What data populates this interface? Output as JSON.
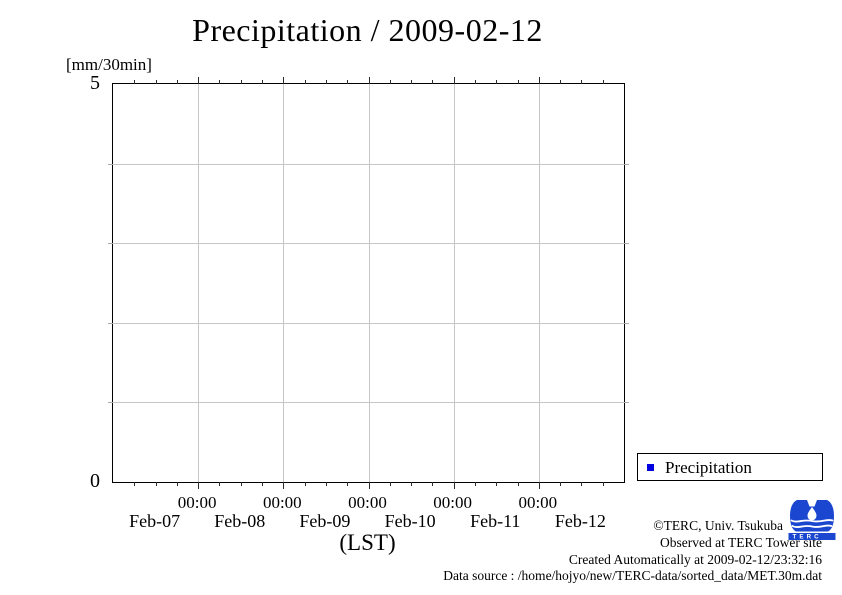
{
  "title": "Precipitation / 2009-02-12",
  "y_axis": {
    "unit_label": "[mm/30min]",
    "max_label": "5",
    "min_label": "0",
    "min": 0,
    "max": 5,
    "gridlines_at": [
      1,
      2,
      3,
      4
    ]
  },
  "x_axis": {
    "label": "(LST)",
    "major_tick_label": "00:00",
    "day_labels": [
      "Feb-07",
      "Feb-08",
      "Feb-09",
      "Feb-10",
      "Feb-11",
      "Feb-12"
    ],
    "minor_ticks_per_day": 4
  },
  "legend": {
    "items": [
      {
        "label": "Precipitation",
        "marker": "filled-square",
        "color": "#0000e0"
      }
    ]
  },
  "annotations": {
    "copyright": "©TERC, Univ. Tsukuba",
    "observed": "Observed at TERC Tower site",
    "created": "Created Automatically at 2009-02-12/23:32:16",
    "data_source": "Data source : /home/hojyo/new/TERC-data/sorted_data/MET.30m.dat"
  },
  "logo": {
    "text": "TERC",
    "color": "#1b46cf",
    "icon": "terc-water-drop-vessel"
  },
  "colors": {
    "legend_marker": "#0000e0",
    "grid": "#c6c6c6",
    "axis": "#000000"
  },
  "chart_data": {
    "type": "bar",
    "title": "Precipitation / 2009-02-12",
    "xlabel": "(LST)",
    "ylabel": "[mm/30min]",
    "x_range": [
      "Feb-07 00:00",
      "Feb-13 00:00"
    ],
    "x_major_tick_label": "00:00",
    "x_day_labels": [
      "Feb-07",
      "Feb-08",
      "Feb-09",
      "Feb-10",
      "Feb-11",
      "Feb-12"
    ],
    "ylim": [
      0,
      5
    ],
    "grid": true,
    "legend_position": "outside-bottom-right",
    "series": [
      {
        "name": "Precipitation",
        "color": "#0000e0",
        "values": [],
        "note": "plot area is empty - no nonzero precipitation drawn for the period"
      }
    ]
  }
}
